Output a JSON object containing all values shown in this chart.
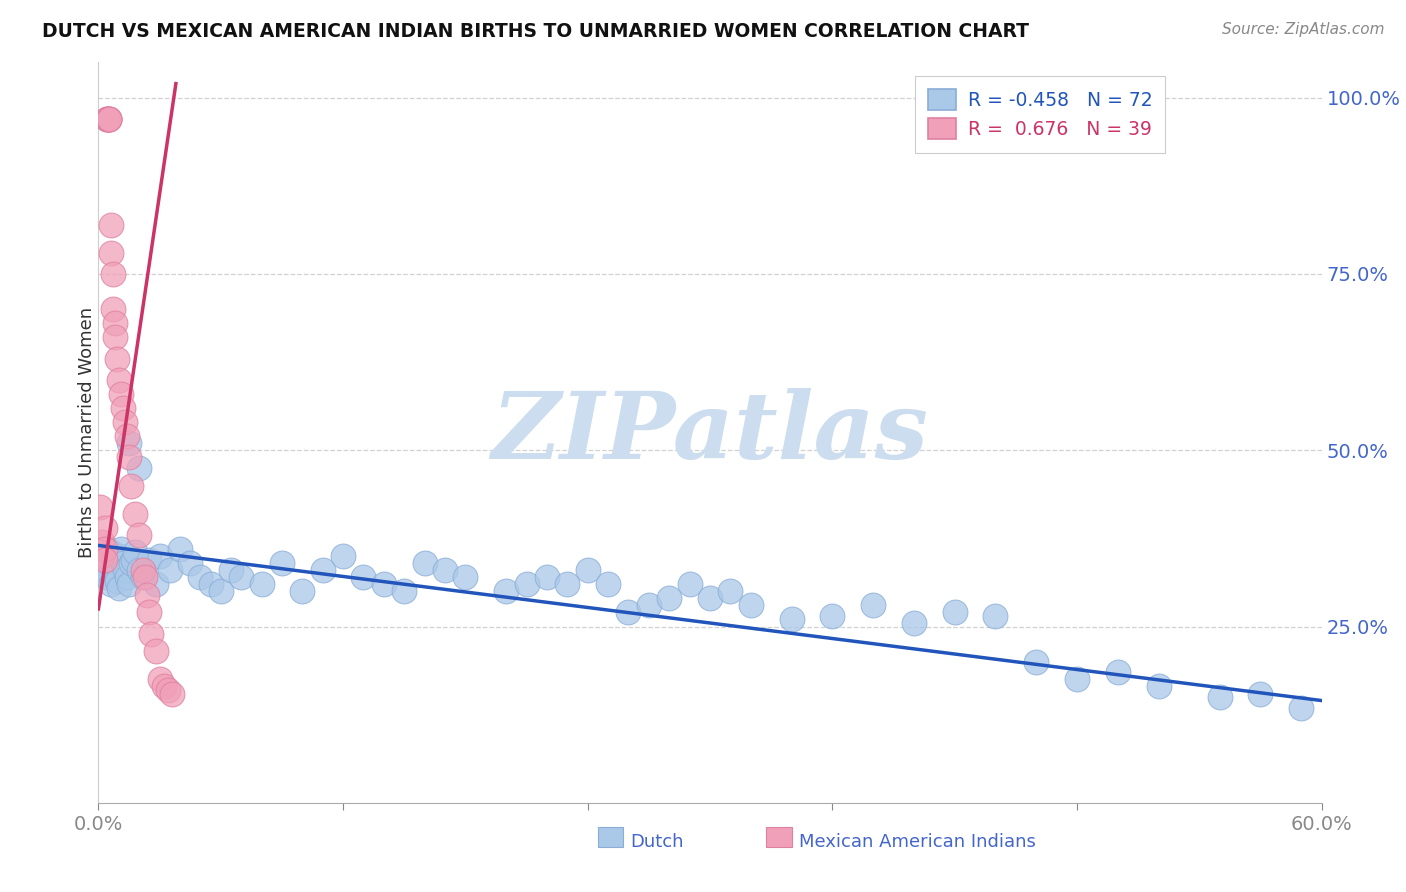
{
  "title": "DUTCH VS MEXICAN AMERICAN INDIAN BIRTHS TO UNMARRIED WOMEN CORRELATION CHART",
  "source": "Source: ZipAtlas.com",
  "ylabel": "Births to Unmarried Women",
  "xlim": [
    0.0,
    0.6
  ],
  "ylim": [
    0.0,
    1.05
  ],
  "ytick_positions": [
    0.25,
    0.5,
    0.75,
    1.0
  ],
  "ytick_labels": [
    "25.0%",
    "50.0%",
    "75.0%",
    "100.0%"
  ],
  "dutch_R": -0.458,
  "dutch_N": 72,
  "mexican_R": 0.676,
  "mexican_N": 39,
  "dutch_color": "#aac8e8",
  "mexican_color": "#f0a0b8",
  "dutch_line_color": "#2255bb",
  "mexican_line_color": "#cc3366",
  "background_color": "#ffffff",
  "grid_color": "#cccccc",
  "watermark": "ZIPatlas",
  "watermark_color": "#ccddf0",
  "dutch_x": [
    0.002,
    0.003,
    0.004,
    0.004,
    0.005,
    0.006,
    0.006,
    0.007,
    0.008,
    0.009,
    0.01,
    0.01,
    0.011,
    0.012,
    0.013,
    0.014,
    0.015,
    0.016,
    0.017,
    0.018,
    0.02,
    0.022,
    0.025,
    0.028,
    0.03,
    0.035,
    0.04,
    0.045,
    0.05,
    0.055,
    0.06,
    0.065,
    0.07,
    0.08,
    0.09,
    0.1,
    0.11,
    0.12,
    0.13,
    0.14,
    0.15,
    0.16,
    0.17,
    0.18,
    0.2,
    0.21,
    0.22,
    0.23,
    0.24,
    0.25,
    0.26,
    0.27,
    0.28,
    0.29,
    0.3,
    0.31,
    0.32,
    0.34,
    0.36,
    0.38,
    0.4,
    0.42,
    0.44,
    0.46,
    0.48,
    0.5,
    0.52,
    0.55,
    0.57,
    0.59,
    0.015,
    0.02
  ],
  "dutch_y": [
    0.335,
    0.33,
    0.32,
    0.36,
    0.34,
    0.31,
    0.355,
    0.345,
    0.325,
    0.315,
    0.35,
    0.305,
    0.36,
    0.34,
    0.33,
    0.32,
    0.31,
    0.34,
    0.345,
    0.355,
    0.33,
    0.32,
    0.345,
    0.31,
    0.35,
    0.33,
    0.36,
    0.34,
    0.32,
    0.31,
    0.3,
    0.33,
    0.32,
    0.31,
    0.34,
    0.3,
    0.33,
    0.35,
    0.32,
    0.31,
    0.3,
    0.34,
    0.33,
    0.32,
    0.3,
    0.31,
    0.32,
    0.31,
    0.33,
    0.31,
    0.27,
    0.28,
    0.29,
    0.31,
    0.29,
    0.3,
    0.28,
    0.26,
    0.265,
    0.28,
    0.255,
    0.27,
    0.265,
    0.2,
    0.175,
    0.185,
    0.165,
    0.15,
    0.155,
    0.135,
    0.51,
    0.475
  ],
  "mexican_x": [
    0.001,
    0.002,
    0.002,
    0.003,
    0.003,
    0.003,
    0.004,
    0.004,
    0.004,
    0.005,
    0.005,
    0.005,
    0.005,
    0.006,
    0.006,
    0.007,
    0.007,
    0.008,
    0.008,
    0.009,
    0.01,
    0.011,
    0.012,
    0.013,
    0.014,
    0.015,
    0.016,
    0.018,
    0.02,
    0.022,
    0.023,
    0.024,
    0.025,
    0.026,
    0.028,
    0.03,
    0.032,
    0.034,
    0.036
  ],
  "mexican_y": [
    0.42,
    0.37,
    0.35,
    0.39,
    0.36,
    0.345,
    0.97,
    0.97,
    0.97,
    0.97,
    0.97,
    0.97,
    0.97,
    0.82,
    0.78,
    0.75,
    0.7,
    0.68,
    0.66,
    0.63,
    0.6,
    0.58,
    0.56,
    0.54,
    0.52,
    0.49,
    0.45,
    0.41,
    0.38,
    0.33,
    0.32,
    0.295,
    0.27,
    0.24,
    0.215,
    0.175,
    0.165,
    0.16,
    0.155
  ],
  "dutch_line_x0": 0.0,
  "dutch_line_x1": 0.6,
  "dutch_line_y0": 0.365,
  "dutch_line_y1": 0.145,
  "mexican_line_x0": 0.0,
  "mexican_line_x1": 0.038,
  "mexican_line_y0": 0.275,
  "mexican_line_y1": 1.02
}
